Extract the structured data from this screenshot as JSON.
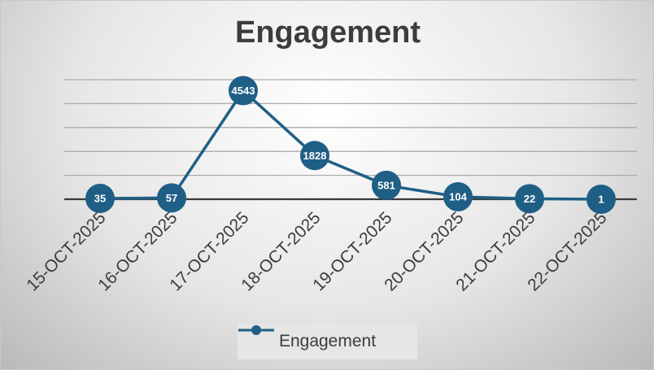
{
  "chart_data": {
    "type": "line",
    "title": "Engagement",
    "categories": [
      "15-OCT-2025",
      "16-OCT-2025",
      "17-OCT-2025",
      "18-OCT-2025",
      "19-OCT-2025",
      "20-OCT-2025",
      "21-OCT-2025",
      "22-OCT-2025"
    ],
    "series": [
      {
        "name": "Engagement",
        "values": [
          35,
          57,
          4543,
          1828,
          581,
          104,
          22,
          1
        ]
      }
    ],
    "ylim": [
      0,
      5000
    ],
    "grid": true,
    "legend_position": "bottom",
    "series_color": "#1f5f86"
  }
}
